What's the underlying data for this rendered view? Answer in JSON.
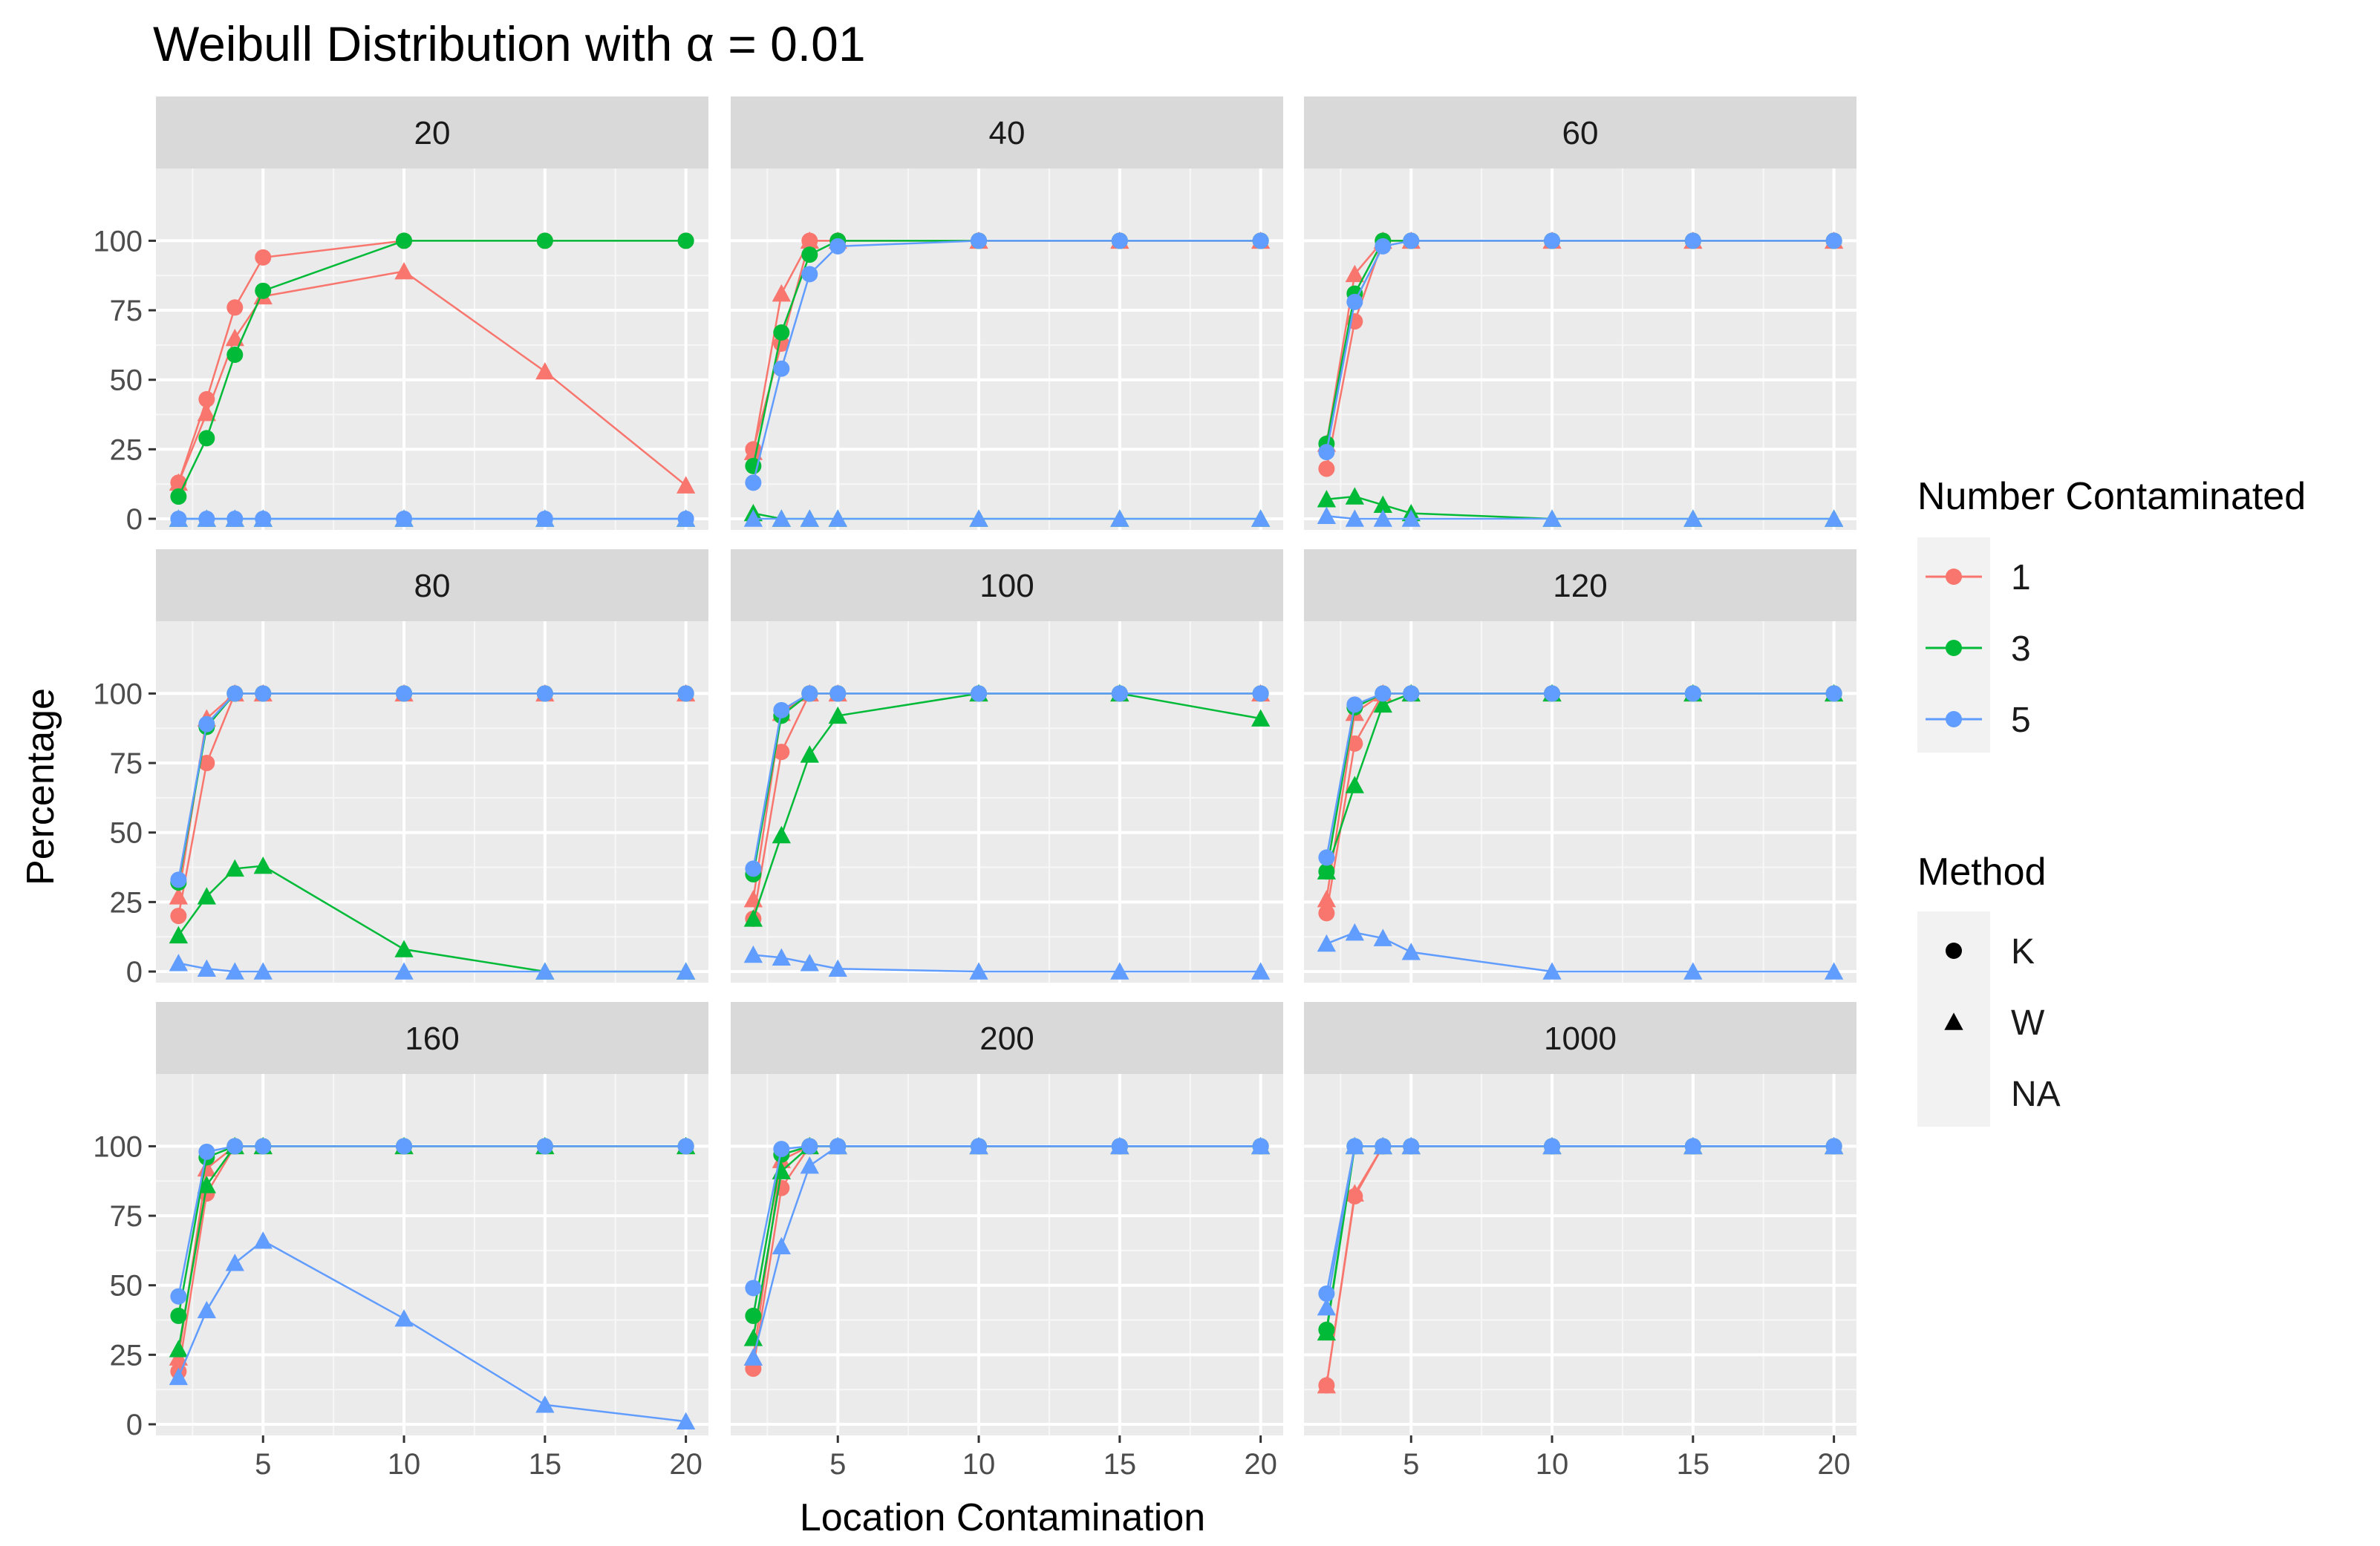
{
  "chart_data": {
    "type": "line",
    "title": "Weibull Distribution with α = 0.01",
    "xlabel": "Location Contamination",
    "ylabel": "Percentage",
    "xlim": [
      1.2,
      20.8
    ],
    "ylim": [
      -4,
      126
    ],
    "xticks": [
      5,
      10,
      15,
      20
    ],
    "xtick_labels": [
      "5",
      "10",
      "15",
      "20"
    ],
    "yticks": [
      0,
      25,
      50,
      75,
      100
    ],
    "ytick_labels": [
      "0",
      "25",
      "50",
      "75",
      "100"
    ],
    "x": [
      2,
      3,
      4,
      5,
      10,
      15,
      20
    ],
    "legend": {
      "color_title": "Number Contaminated",
      "color_entries": [
        {
          "label": "1",
          "color": "#F8766D"
        },
        {
          "label": "3",
          "color": "#00BA38"
        },
        {
          "label": "5",
          "color": "#619CFF"
        }
      ],
      "shape_title": "Method",
      "shape_entries": [
        {
          "label": "K",
          "shape": "circle"
        },
        {
          "label": "W",
          "shape": "triangle"
        },
        {
          "label": "NA",
          "shape": "none"
        }
      ]
    },
    "panels": [
      {
        "label": "20",
        "series": [
          {
            "nc": "1",
            "method": "K",
            "values": [
              13,
              43,
              76,
              94,
              100,
              100,
              100
            ]
          },
          {
            "nc": "1",
            "method": "W",
            "values": [
              13,
              38,
              65,
              80,
              89,
              53,
              12
            ]
          },
          {
            "nc": "3",
            "method": "K",
            "values": [
              8,
              29,
              59,
              82,
              100,
              100,
              100
            ]
          },
          {
            "nc": "3",
            "method": "W",
            "values": [
              0,
              0,
              0,
              0,
              0,
              0,
              0
            ]
          },
          {
            "nc": "5",
            "method": "K",
            "values": [
              0,
              0,
              0,
              0,
              0,
              0,
              0
            ]
          },
          {
            "nc": "5",
            "method": "W",
            "values": [
              0,
              0,
              0,
              0,
              0,
              0,
              0
            ]
          }
        ]
      },
      {
        "label": "40",
        "series": [
          {
            "nc": "1",
            "method": "K",
            "values": [
              25,
              63,
              100,
              100,
              100,
              100,
              100
            ]
          },
          {
            "nc": "1",
            "method": "W",
            "values": [
              24,
              81,
              100,
              100,
              100,
              100,
              100
            ]
          },
          {
            "nc": "3",
            "method": "K",
            "values": [
              19,
              67,
              95,
              100,
              100,
              100,
              100
            ]
          },
          {
            "nc": "3",
            "method": "W",
            "values": [
              2,
              0,
              0,
              0,
              0,
              0,
              0
            ]
          },
          {
            "nc": "5",
            "method": "K",
            "values": [
              13,
              54,
              88,
              98,
              100,
              100,
              100
            ]
          },
          {
            "nc": "5",
            "method": "W",
            "values": [
              0,
              0,
              0,
              0,
              0,
              0,
              0
            ]
          }
        ]
      },
      {
        "label": "60",
        "series": [
          {
            "nc": "1",
            "method": "K",
            "values": [
              18,
              71,
              100,
              100,
              100,
              100,
              100
            ]
          },
          {
            "nc": "1",
            "method": "W",
            "values": [
              27,
              88,
              100,
              100,
              100,
              100,
              100
            ]
          },
          {
            "nc": "3",
            "method": "K",
            "values": [
              27,
              81,
              100,
              100,
              100,
              100,
              100
            ]
          },
          {
            "nc": "3",
            "method": "W",
            "values": [
              7,
              8,
              5,
              2,
              0,
              0,
              0
            ]
          },
          {
            "nc": "5",
            "method": "K",
            "values": [
              24,
              78,
              98,
              100,
              100,
              100,
              100
            ]
          },
          {
            "nc": "5",
            "method": "W",
            "values": [
              1,
              0,
              0,
              0,
              0,
              0,
              0
            ]
          }
        ]
      },
      {
        "label": "80",
        "series": [
          {
            "nc": "1",
            "method": "K",
            "values": [
              20,
              75,
              100,
              100,
              100,
              100,
              100
            ]
          },
          {
            "nc": "1",
            "method": "W",
            "values": [
              27,
              91,
              100,
              100,
              100,
              100,
              100
            ]
          },
          {
            "nc": "3",
            "method": "K",
            "values": [
              32,
              88,
              100,
              100,
              100,
              100,
              100
            ]
          },
          {
            "nc": "3",
            "method": "W",
            "values": [
              13,
              27,
              37,
              38,
              8,
              0,
              0
            ]
          },
          {
            "nc": "5",
            "method": "K",
            "values": [
              33,
              89,
              100,
              100,
              100,
              100,
              100
            ]
          },
          {
            "nc": "5",
            "method": "W",
            "values": [
              3,
              1,
              0,
              0,
              0,
              0,
              0
            ]
          }
        ]
      },
      {
        "label": "100",
        "series": [
          {
            "nc": "1",
            "method": "K",
            "values": [
              19,
              79,
              100,
              100,
              100,
              100,
              100
            ]
          },
          {
            "nc": "1",
            "method": "W",
            "values": [
              26,
              93,
              100,
              100,
              100,
              100,
              100
            ]
          },
          {
            "nc": "3",
            "method": "K",
            "values": [
              35,
              92,
              100,
              100,
              100,
              100,
              100
            ]
          },
          {
            "nc": "3",
            "method": "W",
            "values": [
              19,
              49,
              78,
              92,
              100,
              100,
              91
            ]
          },
          {
            "nc": "5",
            "method": "K",
            "values": [
              37,
              94,
              100,
              100,
              100,
              100,
              100
            ]
          },
          {
            "nc": "5",
            "method": "W",
            "values": [
              6,
              5,
              3,
              1,
              0,
              0,
              0
            ]
          }
        ]
      },
      {
        "label": "120",
        "series": [
          {
            "nc": "1",
            "method": "K",
            "values": [
              21,
              82,
              100,
              100,
              100,
              100,
              100
            ]
          },
          {
            "nc": "1",
            "method": "W",
            "values": [
              26,
              93,
              100,
              100,
              100,
              100,
              100
            ]
          },
          {
            "nc": "3",
            "method": "K",
            "values": [
              36,
              95,
              100,
              100,
              100,
              100,
              100
            ]
          },
          {
            "nc": "3",
            "method": "W",
            "values": [
              36,
              67,
              96,
              100,
              100,
              100,
              100
            ]
          },
          {
            "nc": "5",
            "method": "K",
            "values": [
              41,
              96,
              100,
              100,
              100,
              100,
              100
            ]
          },
          {
            "nc": "5",
            "method": "W",
            "values": [
              10,
              14,
              12,
              7,
              0,
              0,
              0
            ]
          }
        ]
      },
      {
        "label": "160",
        "series": [
          {
            "nc": "1",
            "method": "K",
            "values": [
              19,
              83,
              100,
              100,
              100,
              100,
              100
            ]
          },
          {
            "nc": "1",
            "method": "W",
            "values": [
              24,
              92,
              100,
              100,
              100,
              100,
              100
            ]
          },
          {
            "nc": "3",
            "method": "K",
            "values": [
              39,
              96,
              100,
              100,
              100,
              100,
              100
            ]
          },
          {
            "nc": "3",
            "method": "W",
            "values": [
              27,
              86,
              100,
              100,
              100,
              100,
              100
            ]
          },
          {
            "nc": "5",
            "method": "K",
            "values": [
              46,
              98,
              100,
              100,
              100,
              100,
              100
            ]
          },
          {
            "nc": "5",
            "method": "W",
            "values": [
              17,
              41,
              58,
              66,
              38,
              7,
              1
            ]
          }
        ]
      },
      {
        "label": "200",
        "series": [
          {
            "nc": "1",
            "method": "K",
            "values": [
              20,
              85,
              100,
              100,
              100,
              100,
              100
            ]
          },
          {
            "nc": "1",
            "method": "W",
            "values": [
              24,
              95,
              100,
              100,
              100,
              100,
              100
            ]
          },
          {
            "nc": "3",
            "method": "K",
            "values": [
              39,
              97,
              100,
              100,
              100,
              100,
              100
            ]
          },
          {
            "nc": "3",
            "method": "W",
            "values": [
              31,
              91,
              100,
              100,
              100,
              100,
              100
            ]
          },
          {
            "nc": "5",
            "method": "K",
            "values": [
              49,
              99,
              100,
              100,
              100,
              100,
              100
            ]
          },
          {
            "nc": "5",
            "method": "W",
            "values": [
              24,
              64,
              93,
              100,
              100,
              100,
              100
            ]
          }
        ]
      },
      {
        "label": "1000",
        "series": [
          {
            "nc": "1",
            "method": "K",
            "values": [
              14,
              82,
              100,
              100,
              100,
              100,
              100
            ]
          },
          {
            "nc": "1",
            "method": "W",
            "values": [
              14,
              83,
              100,
              100,
              100,
              100,
              100
            ]
          },
          {
            "nc": "3",
            "method": "K",
            "values": [
              34,
              100,
              100,
              100,
              100,
              100,
              100
            ]
          },
          {
            "nc": "3",
            "method": "W",
            "values": [
              33,
              100,
              100,
              100,
              100,
              100,
              100
            ]
          },
          {
            "nc": "5",
            "method": "K",
            "values": [
              47,
              100,
              100,
              100,
              100,
              100,
              100
            ]
          },
          {
            "nc": "5",
            "method": "W",
            "values": [
              42,
              100,
              100,
              100,
              100,
              100,
              100
            ]
          }
        ]
      }
    ]
  }
}
